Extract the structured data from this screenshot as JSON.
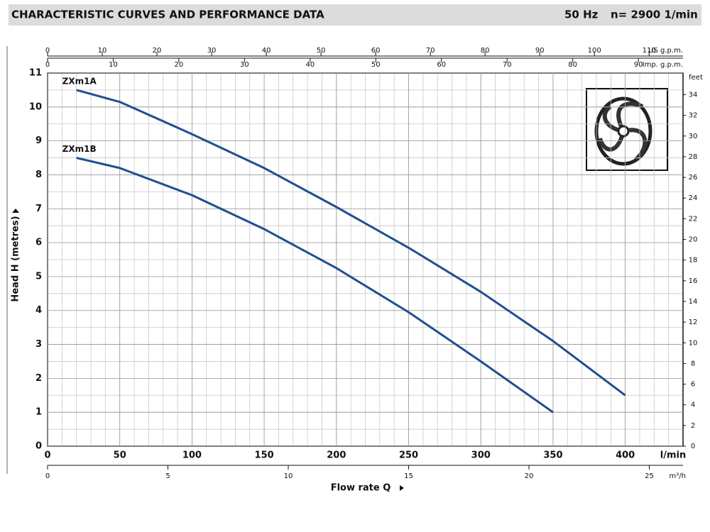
{
  "chart_data": {
    "type": "line",
    "title": "CHARACTERISTIC CURVES AND PERFORMANCE DATA",
    "frequency": "50 Hz",
    "speed": "n= 2900  1/min",
    "x_label": "Flow rate Q",
    "x_unit": "l/min",
    "y_label": "Head H (metres)",
    "x": [
      20,
      50,
      100,
      150,
      200,
      250,
      300,
      350,
      400
    ],
    "series": [
      {
        "name": "ZXm1A",
        "color": "#1f4f8f",
        "values": [
          10.5,
          10.15,
          9.2,
          8.2,
          7.05,
          5.85,
          4.55,
          3.1,
          1.5
        ]
      },
      {
        "name": "ZXm1B",
        "color": "#1f4f8f",
        "values": [
          8.5,
          8.2,
          7.4,
          6.4,
          5.25,
          3.95,
          2.5,
          1.0,
          null
        ]
      }
    ],
    "xlim": [
      0,
      440
    ],
    "xticks": [
      0,
      50,
      100,
      150,
      200,
      250,
      300,
      350,
      400
    ],
    "ylim": [
      0,
      11
    ],
    "yticks": [
      0,
      1,
      2,
      3,
      4,
      5,
      6,
      7,
      8,
      9,
      10,
      11
    ],
    "y2_label": "feet",
    "y2lim": [
      0,
      36.09
    ],
    "y2ticks": [
      0,
      2,
      4,
      6,
      8,
      10,
      12,
      14,
      16,
      18,
      20,
      22,
      24,
      26,
      28,
      30,
      32,
      34
    ],
    "us_gpm_axis": {
      "label": "US g.p.m.",
      "lim": [
        0,
        116.2
      ],
      "ticks": [
        0,
        10,
        20,
        30,
        40,
        50,
        60,
        70,
        80,
        90,
        100,
        110
      ]
    },
    "imp_gpm_axis": {
      "label": "Imp. g.p.m.",
      "lim": [
        0,
        96.8
      ],
      "ticks": [
        0,
        10,
        20,
        30,
        40,
        50,
        60,
        70,
        80,
        90
      ]
    },
    "m3h_axis": {
      "label": "m³/h",
      "lim": [
        0,
        26.4
      ],
      "ticks": [
        0,
        5,
        10,
        15,
        20,
        25
      ]
    },
    "grid": true
  }
}
